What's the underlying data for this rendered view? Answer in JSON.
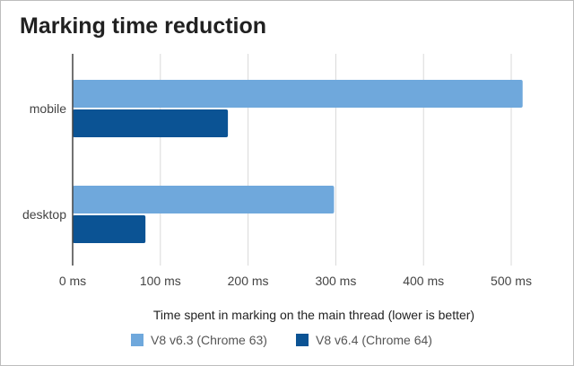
{
  "chart_data": {
    "type": "bar",
    "orientation": "horizontal",
    "title": "Marking time reduction",
    "categories": [
      "mobile",
      "desktop"
    ],
    "series": [
      {
        "name": "V8 v6.3 (Chrome 63)",
        "values": [
          513,
          298
        ],
        "color": "#6fa8dc"
      },
      {
        "name": "V8 v6.4 (Chrome 64)",
        "values": [
          177,
          83
        ],
        "color": "#0b5394"
      }
    ],
    "xlabel": "Time spent in marking on the main thread (lower is better)",
    "ylabel": "",
    "xlim": [
      0,
      500
    ],
    "xticks": [
      0,
      100,
      200,
      300,
      400,
      500
    ],
    "tick_suffix": " ms",
    "grid": true,
    "legend_position": "bottom"
  }
}
